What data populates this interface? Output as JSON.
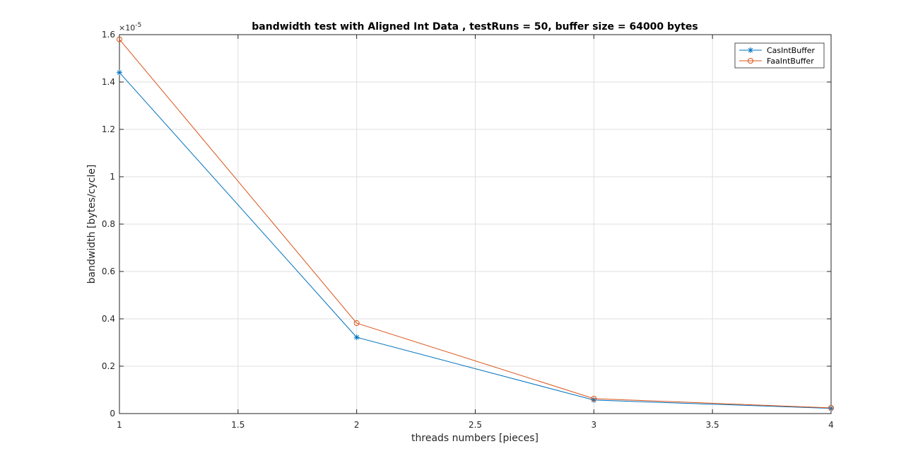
{
  "chart_data": {
    "type": "line",
    "title": "bandwidth test with Aligned Int Data , testRuns = 50, buffer size = 64000 bytes",
    "xlabel": "threads numbers [pieces]",
    "ylabel": "bandwidth [bytes/cycle]",
    "y_exponent_label": "×10",
    "y_exponent_power": "-5",
    "xlim": [
      1,
      4
    ],
    "ylim": [
      0,
      1.6
    ],
    "xticks": [
      1,
      1.5,
      2,
      2.5,
      3,
      3.5,
      4
    ],
    "xtick_labels": [
      "1",
      "1.5",
      "2",
      "2.5",
      "3",
      "3.5",
      "4"
    ],
    "yticks": [
      0,
      0.2,
      0.4,
      0.6,
      0.8,
      1,
      1.2,
      1.4,
      1.6
    ],
    "ytick_labels": [
      "0",
      "0.2",
      "0.4",
      "0.6",
      "0.8",
      "1",
      "1.2",
      "1.4",
      "1.6"
    ],
    "grid": true,
    "legend_position": "top-right",
    "x": [
      1,
      2,
      3,
      4
    ],
    "series": [
      {
        "name": "CasIntBuffer",
        "values": [
          1.44,
          0.322,
          0.057,
          0.022
        ],
        "color": "#0072BD",
        "marker": "asterisk"
      },
      {
        "name": "FaaIntBuffer",
        "values": [
          1.58,
          0.382,
          0.063,
          0.024
        ],
        "color": "#D95319",
        "marker": "circle"
      }
    ]
  }
}
